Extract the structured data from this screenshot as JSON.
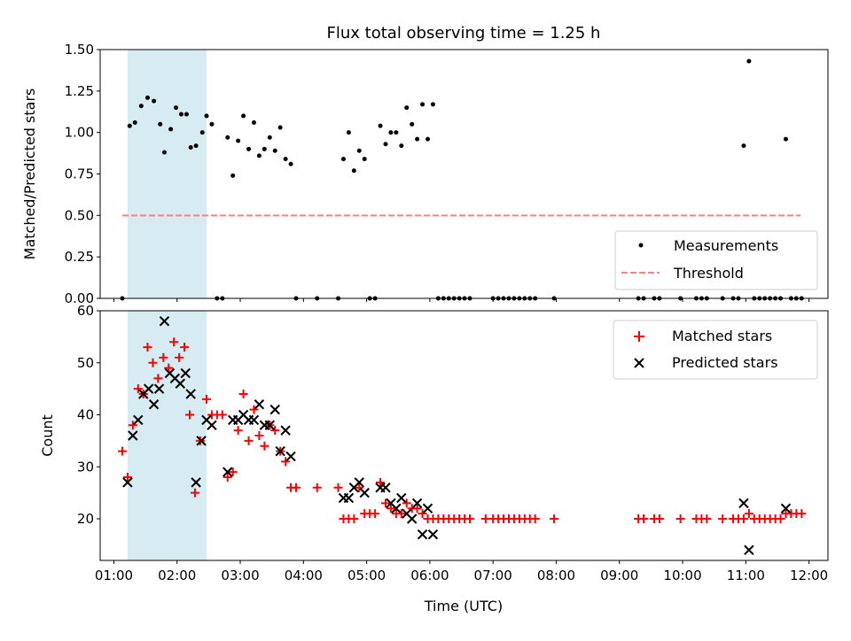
{
  "chart_data": [
    {
      "type": "scatter",
      "title": "Flux total observing time = 1.25 h",
      "ylabel": "Matched/Predicted stars",
      "xlabel": "",
      "xlim": [
        "00:47",
        "12:18"
      ],
      "ylim": [
        0,
        1.5
      ],
      "yticks": [
        "0.00",
        "0.25",
        "0.50",
        "0.75",
        "1.00",
        "1.25",
        "1.50"
      ],
      "shaded_span": [
        "01:13",
        "02:28"
      ],
      "threshold": {
        "name": "Threshold",
        "value": 0.5,
        "x_range": [
          "01:08",
          "11:52"
        ],
        "color": "#ff8080"
      },
      "legend_position": "lower right",
      "series": [
        {
          "name": "Measurements",
          "color": "#000000",
          "points": [
            [
              "01:08",
              0
            ],
            [
              "01:15",
              1.04
            ],
            [
              "01:20",
              1.06
            ],
            [
              "01:26",
              1.16
            ],
            [
              "01:32",
              1.21
            ],
            [
              "01:38",
              1.19
            ],
            [
              "01:44",
              1.05
            ],
            [
              "01:48",
              0.88
            ],
            [
              "01:54",
              1.02
            ],
            [
              "01:59",
              1.15
            ],
            [
              "02:04",
              1.11
            ],
            [
              "02:09",
              1.11
            ],
            [
              "02:13",
              0.91
            ],
            [
              "02:18",
              0.92
            ],
            [
              "02:24",
              1.0
            ],
            [
              "02:28",
              1.1
            ],
            [
              "02:33",
              1.05
            ],
            [
              "02:38",
              0
            ],
            [
              "02:43",
              0
            ],
            [
              "02:48",
              0.97
            ],
            [
              "02:53",
              0.74
            ],
            [
              "02:58",
              0.95
            ],
            [
              "03:03",
              1.1
            ],
            [
              "03:08",
              0.9
            ],
            [
              "03:13",
              1.06
            ],
            [
              "03:18",
              0.86
            ],
            [
              "03:23",
              0.9
            ],
            [
              "03:28",
              0.97
            ],
            [
              "03:33",
              0.89
            ],
            [
              "03:38",
              1.03
            ],
            [
              "03:43",
              0.84
            ],
            [
              "03:48",
              0.81
            ],
            [
              "03:53",
              0
            ],
            [
              "04:13",
              0
            ],
            [
              "04:33",
              0
            ],
            [
              "04:38",
              0.84
            ],
            [
              "04:43",
              1.0
            ],
            [
              "04:48",
              0.77
            ],
            [
              "04:53",
              0.89
            ],
            [
              "04:58",
              0.84
            ],
            [
              "05:03",
              0
            ],
            [
              "05:08",
              0
            ],
            [
              "05:13",
              1.04
            ],
            [
              "05:18",
              0.93
            ],
            [
              "05:23",
              1.0
            ],
            [
              "05:28",
              1.0
            ],
            [
              "05:33",
              0.92
            ],
            [
              "05:38",
              1.15
            ],
            [
              "05:43",
              1.05
            ],
            [
              "05:48",
              0.96
            ],
            [
              "05:53",
              1.17
            ],
            [
              "05:58",
              0.96
            ],
            [
              "06:03",
              1.17
            ],
            [
              "06:08",
              0
            ],
            [
              "06:13",
              0
            ],
            [
              "06:18",
              0
            ],
            [
              "06:23",
              0
            ],
            [
              "06:28",
              0
            ],
            [
              "06:33",
              0
            ],
            [
              "06:38",
              0
            ],
            [
              "07:00",
              0
            ],
            [
              "07:05",
              0
            ],
            [
              "07:10",
              0
            ],
            [
              "07:15",
              0
            ],
            [
              "07:20",
              0
            ],
            [
              "07:25",
              0
            ],
            [
              "07:30",
              0
            ],
            [
              "07:35",
              0
            ],
            [
              "07:40",
              0
            ],
            [
              "07:58",
              0
            ],
            [
              "09:18",
              0
            ],
            [
              "09:23",
              0
            ],
            [
              "09:33",
              0
            ],
            [
              "09:38",
              0
            ],
            [
              "09:58",
              0
            ],
            [
              "10:13",
              0
            ],
            [
              "10:18",
              0
            ],
            [
              "10:23",
              0
            ],
            [
              "10:38",
              0
            ],
            [
              "10:48",
              0
            ],
            [
              "10:53",
              0
            ],
            [
              "10:58",
              0.92
            ],
            [
              "11:03",
              1.43
            ],
            [
              "11:08",
              0
            ],
            [
              "11:13",
              0
            ],
            [
              "11:18",
              0
            ],
            [
              "11:23",
              0
            ],
            [
              "11:28",
              0
            ],
            [
              "11:33",
              0
            ],
            [
              "11:38",
              0.96
            ],
            [
              "11:43",
              0
            ],
            [
              "11:48",
              0
            ],
            [
              "11:53",
              0
            ]
          ]
        }
      ]
    },
    {
      "type": "scatter",
      "title": "",
      "ylabel": "Count",
      "xlabel": "Time (UTC)",
      "xlim": [
        "00:47",
        "12:18"
      ],
      "ylim": [
        12,
        60
      ],
      "yticks": [
        "20",
        "30",
        "40",
        "50",
        "60"
      ],
      "xticks": [
        "01:00",
        "02:00",
        "03:00",
        "04:00",
        "05:00",
        "06:00",
        "07:00",
        "08:00",
        "09:00",
        "10:00",
        "11:00",
        "12:00"
      ],
      "shaded_span": [
        "01:13",
        "02:28"
      ],
      "legend_position": "upper right",
      "series": [
        {
          "name": "Matched stars",
          "marker": "+",
          "color": "#ff0000",
          "points": [
            [
              "01:08",
              33
            ],
            [
              "01:13",
              28
            ],
            [
              "01:18",
              38
            ],
            [
              "01:23",
              45
            ],
            [
              "01:28",
              44
            ],
            [
              "01:32",
              53
            ],
            [
              "01:37",
              50
            ],
            [
              "01:42",
              47
            ],
            [
              "01:47",
              51
            ],
            [
              "01:52",
              49
            ],
            [
              "01:57",
              54
            ],
            [
              "02:02",
              51
            ],
            [
              "02:07",
              53
            ],
            [
              "02:12",
              40
            ],
            [
              "02:17",
              25
            ],
            [
              "02:22",
              35
            ],
            [
              "02:28",
              43
            ],
            [
              "02:33",
              40
            ],
            [
              "02:38",
              40
            ],
            [
              "02:43",
              40
            ],
            [
              "02:48",
              28
            ],
            [
              "02:53",
              29
            ],
            [
              "02:58",
              37
            ],
            [
              "03:03",
              44
            ],
            [
              "03:08",
              35
            ],
            [
              "03:13",
              41
            ],
            [
              "03:18",
              36
            ],
            [
              "03:23",
              34
            ],
            [
              "03:28",
              38
            ],
            [
              "03:33",
              37
            ],
            [
              "03:38",
              33
            ],
            [
              "03:43",
              31
            ],
            [
              "03:48",
              26
            ],
            [
              "03:53",
              26
            ],
            [
              "04:13",
              26
            ],
            [
              "04:33",
              26
            ],
            [
              "04:38",
              20
            ],
            [
              "04:43",
              20
            ],
            [
              "04:48",
              20
            ],
            [
              "04:53",
              26
            ],
            [
              "04:58",
              21
            ],
            [
              "05:03",
              21
            ],
            [
              "05:08",
              21
            ],
            [
              "05:13",
              27
            ],
            [
              "05:18",
              23
            ],
            [
              "05:23",
              22
            ],
            [
              "05:28",
              21
            ],
            [
              "05:33",
              21
            ],
            [
              "05:38",
              23
            ],
            [
              "05:43",
              22
            ],
            [
              "05:48",
              22
            ],
            [
              "05:53",
              21
            ],
            [
              "05:58",
              20
            ],
            [
              "06:03",
              20
            ],
            [
              "06:08",
              20
            ],
            [
              "06:13",
              20
            ],
            [
              "06:18",
              20
            ],
            [
              "06:23",
              20
            ],
            [
              "06:28",
              20
            ],
            [
              "06:33",
              20
            ],
            [
              "06:38",
              20
            ],
            [
              "06:53",
              20
            ],
            [
              "07:00",
              20
            ],
            [
              "07:05",
              20
            ],
            [
              "07:10",
              20
            ],
            [
              "07:15",
              20
            ],
            [
              "07:20",
              20
            ],
            [
              "07:25",
              20
            ],
            [
              "07:30",
              20
            ],
            [
              "07:35",
              20
            ],
            [
              "07:40",
              20
            ],
            [
              "07:58",
              20
            ],
            [
              "09:18",
              20
            ],
            [
              "09:23",
              20
            ],
            [
              "09:33",
              20
            ],
            [
              "09:38",
              20
            ],
            [
              "09:58",
              20
            ],
            [
              "10:13",
              20
            ],
            [
              "10:18",
              20
            ],
            [
              "10:23",
              20
            ],
            [
              "10:38",
              20
            ],
            [
              "10:48",
              20
            ],
            [
              "10:53",
              20
            ],
            [
              "10:58",
              20
            ],
            [
              "11:03",
              21
            ],
            [
              "11:08",
              20
            ],
            [
              "11:13",
              20
            ],
            [
              "11:18",
              20
            ],
            [
              "11:23",
              20
            ],
            [
              "11:28",
              20
            ],
            [
              "11:33",
              20
            ],
            [
              "11:38",
              21
            ],
            [
              "11:43",
              21
            ],
            [
              "11:48",
              21
            ],
            [
              "11:53",
              21
            ]
          ]
        },
        {
          "name": "Predicted stars",
          "marker": "x",
          "color": "#000000",
          "points": [
            [
              "01:13",
              27
            ],
            [
              "01:18",
              36
            ],
            [
              "01:23",
              39
            ],
            [
              "01:28",
              44
            ],
            [
              "01:33",
              45
            ],
            [
              "01:38",
              42
            ],
            [
              "01:43",
              45
            ],
            [
              "01:48",
              58
            ],
            [
              "01:53",
              48
            ],
            [
              "01:58",
              47
            ],
            [
              "02:03",
              46
            ],
            [
              "02:08",
              48
            ],
            [
              "02:13",
              44
            ],
            [
              "02:18",
              27
            ],
            [
              "02:23",
              35
            ],
            [
              "02:28",
              39
            ],
            [
              "02:33",
              38
            ],
            [
              "02:48",
              29
            ],
            [
              "02:53",
              39
            ],
            [
              "02:58",
              39
            ],
            [
              "03:03",
              40
            ],
            [
              "03:08",
              39
            ],
            [
              "03:13",
              39
            ],
            [
              "03:18",
              42
            ],
            [
              "03:23",
              38
            ],
            [
              "03:28",
              38
            ],
            [
              "03:33",
              41
            ],
            [
              "03:38",
              33
            ],
            [
              "03:43",
              37
            ],
            [
              "03:48",
              32
            ],
            [
              "04:38",
              24
            ],
            [
              "04:43",
              24
            ],
            [
              "04:48",
              26
            ],
            [
              "04:53",
              27
            ],
            [
              "04:58",
              25
            ],
            [
              "05:13",
              26
            ],
            [
              "05:18",
              26
            ],
            [
              "05:23",
              23
            ],
            [
              "05:28",
              22
            ],
            [
              "05:33",
              24
            ],
            [
              "05:38",
              21
            ],
            [
              "05:43",
              20
            ],
            [
              "05:48",
              23
            ],
            [
              "05:53",
              17
            ],
            [
              "05:58",
              22
            ],
            [
              "06:03",
              17
            ],
            [
              "10:58",
              23
            ],
            [
              "11:03",
              14
            ],
            [
              "11:38",
              22
            ]
          ]
        }
      ]
    }
  ]
}
